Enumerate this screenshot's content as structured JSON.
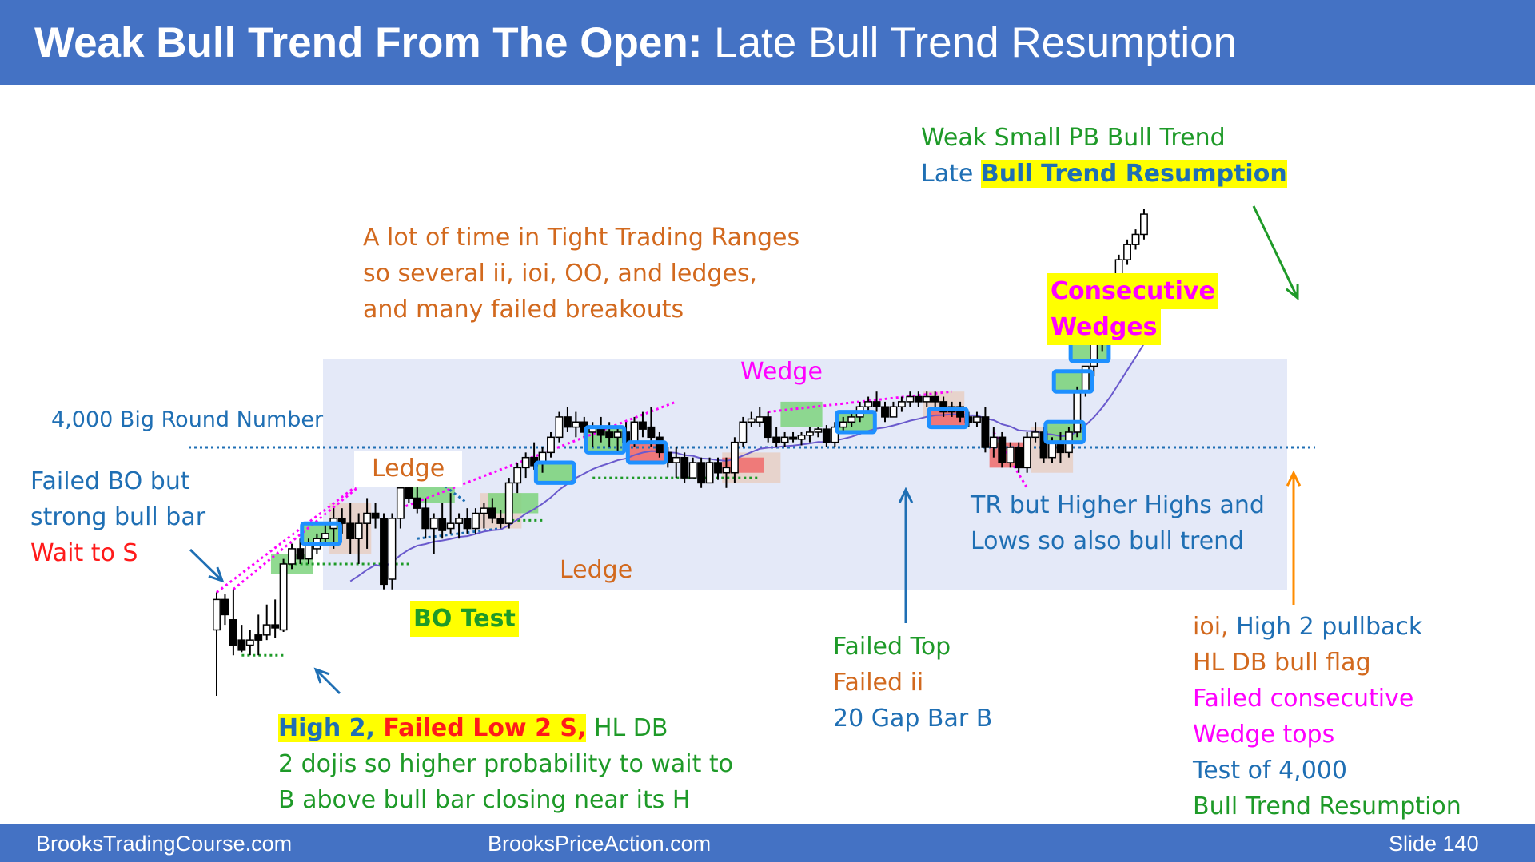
{
  "title": {
    "bold": "Weak Bull Trend From The Open:",
    "rest": "Late Bull Trend Resumption"
  },
  "footer": {
    "left": "BrooksTradingCourse.com",
    "center": "BrooksPriceAction.com",
    "right": "Slide  140"
  },
  "annotations": {
    "weak_small_pb": "Weak Small PB Bull Trend",
    "late": "Late",
    "bull_trend_resumption": "Bull Trend Resumption",
    "tight_tr_1": "A lot of time in Tight Trading Ranges",
    "tight_tr_2": "so several ii, ioi, OO, and ledges,",
    "tight_tr_3": "and many failed breakouts",
    "consecutive": "Consecutive",
    "wedges": "Wedges",
    "wedge": "Wedge",
    "big_round_number": "4,000 Big Round Number",
    "failed_bo_1": "Failed BO but",
    "failed_bo_2": "strong bull bar",
    "failed_bo_3": "Wait to S",
    "ledge_top": "Ledge",
    "ledge_bottom": "Ledge",
    "bo_test": "BO Test",
    "tr_hh_1": "TR but Higher Highs and",
    "tr_hh_2": "Lows so also bull trend",
    "failed_top_1": "Failed Top",
    "failed_top_2": "Failed ii",
    "failed_top_3": "20 Gap Bar B",
    "high2_a": "High 2,",
    "high2_b": "Failed Low 2 S,",
    "high2_c": "HL DB",
    "high2_2": "2 dojis so higher probability to wait to",
    "high2_3": "B above bull bar closing near its H",
    "ioi_1a": "ioi,",
    "ioi_1b": "High 2 pullback",
    "ioi_2": "HL DB bull flag",
    "ioi_3": "Failed consecutive",
    "ioi_4": "Wedge tops",
    "ioi_5": "Test of 4,000",
    "ioi_6": "Bull Trend Resumption"
  },
  "colors": {
    "header": "#4472c4",
    "bull": "#ffffff",
    "bear": "#000000",
    "ema": "#6a5acd",
    "trading_range": "#e4e9f8",
    "green_box": "#7ed47e",
    "red_box": "#f06a6a",
    "blue_box": "#1e90ff",
    "ledge_box": "#e8cfc4"
  },
  "chart_data": {
    "type": "candlestick",
    "title": "",
    "xlabel": "",
    "ylabel": "",
    "reference_line": {
      "value": 4000,
      "label": "4,000 Big Round Number"
    },
    "ylim": [
      3974,
      4026
    ],
    "bars": [
      {
        "o": 3982.0,
        "h": 3985.7,
        "l": 3975.5,
        "c": 3985.0
      },
      {
        "o": 3985.0,
        "h": 3985.5,
        "l": 3982.5,
        "c": 3983.5
      },
      {
        "o": 3983.0,
        "h": 3986.0,
        "l": 3979.5,
        "c": 3980.5
      },
      {
        "o": 3981.0,
        "h": 3982.5,
        "l": 3979.8,
        "c": 3980.0
      },
      {
        "o": 3980.5,
        "h": 3982.0,
        "l": 3979.5,
        "c": 3981.0
      },
      {
        "o": 3981.5,
        "h": 3983.5,
        "l": 3979.5,
        "c": 3981.0
      },
      {
        "o": 3981.5,
        "h": 3984.5,
        "l": 3981.0,
        "c": 3982.5
      },
      {
        "o": 3982.5,
        "h": 3985.0,
        "l": 3981.2,
        "c": 3982.2
      },
      {
        "o": 3982.0,
        "h": 3989.0,
        "l": 3981.8,
        "c": 3988.5
      },
      {
        "o": 3988.5,
        "h": 3990.5,
        "l": 3988.0,
        "c": 3990.0
      },
      {
        "o": 3990.0,
        "h": 3991.0,
        "l": 3988.5,
        "c": 3989.0
      },
      {
        "o": 3989.0,
        "h": 3991.0,
        "l": 3988.5,
        "c": 3990.5
      },
      {
        "o": 3990.0,
        "h": 3991.5,
        "l": 3989.5,
        "c": 3991.0
      },
      {
        "o": 3991.0,
        "h": 3992.5,
        "l": 3990.5,
        "c": 3991.5
      },
      {
        "o": 3992.0,
        "h": 3994.0,
        "l": 3990.0,
        "c": 3993.0
      },
      {
        "o": 3993.0,
        "h": 3994.0,
        "l": 3991.5,
        "c": 3992.5
      },
      {
        "o": 3992.5,
        "h": 3994.5,
        "l": 3989.5,
        "c": 3991.0
      },
      {
        "o": 3991.0,
        "h": 3993.5,
        "l": 3988.5,
        "c": 3992.5
      },
      {
        "o": 3992.5,
        "h": 3995.0,
        "l": 3990.0,
        "c": 3993.5
      },
      {
        "o": 3993.5,
        "h": 3994.5,
        "l": 3992.0,
        "c": 3993.0
      },
      {
        "o": 3993.0,
        "h": 3993.5,
        "l": 3986.0,
        "c": 3986.5
      },
      {
        "o": 3987.0,
        "h": 3993.5,
        "l": 3986.0,
        "c": 3993.0
      },
      {
        "o": 3993.0,
        "h": 3996.0,
        "l": 3992.0,
        "c": 3996.0
      },
      {
        "o": 3996.0,
        "h": 3999.5,
        "l": 3994.5,
        "c": 3995.0
      },
      {
        "o": 3995.0,
        "h": 3996.5,
        "l": 3993.5,
        "c": 3994.0
      },
      {
        "o": 3994.0,
        "h": 3995.0,
        "l": 3991.0,
        "c": 3992.0
      },
      {
        "o": 3992.0,
        "h": 3993.5,
        "l": 3989.5,
        "c": 3993.0
      },
      {
        "o": 3993.0,
        "h": 3994.5,
        "l": 3991.0,
        "c": 3991.8
      },
      {
        "o": 3992.0,
        "h": 3995.5,
        "l": 3991.5,
        "c": 3992.5
      },
      {
        "o": 3992.5,
        "h": 3993.5,
        "l": 3991.0,
        "c": 3993.0
      },
      {
        "o": 3993.0,
        "h": 3994.0,
        "l": 3991.5,
        "c": 3992.0
      },
      {
        "o": 3992.0,
        "h": 3994.0,
        "l": 3991.5,
        "c": 3993.5
      },
      {
        "o": 3993.5,
        "h": 3994.5,
        "l": 3992.0,
        "c": 3994.0
      },
      {
        "o": 3994.0,
        "h": 3995.0,
        "l": 3992.5,
        "c": 3993.0
      },
      {
        "o": 3993.0,
        "h": 3993.8,
        "l": 3992.0,
        "c": 3992.5
      },
      {
        "o": 3992.5,
        "h": 3997.0,
        "l": 3992.0,
        "c": 3996.5
      },
      {
        "o": 3996.5,
        "h": 3998.5,
        "l": 3995.5,
        "c": 3998.0
      },
      {
        "o": 3998.0,
        "h": 3999.5,
        "l": 3997.0,
        "c": 3999.0
      },
      {
        "o": 3999.0,
        "h": 4000.5,
        "l": 3997.8,
        "c": 3998.2
      },
      {
        "o": 3998.5,
        "h": 4000.0,
        "l": 3997.5,
        "c": 3999.5
      },
      {
        "o": 3999.5,
        "h": 4001.5,
        "l": 3999.0,
        "c": 4001.0
      },
      {
        "o": 4001.0,
        "h": 4003.5,
        "l": 4000.5,
        "c": 4003.0
      },
      {
        "o": 4003.0,
        "h": 4004.0,
        "l": 4001.5,
        "c": 4002.0
      },
      {
        "o": 4002.0,
        "h": 4003.5,
        "l": 4001.0,
        "c": 4002.5
      },
      {
        "o": 4002.5,
        "h": 4003.0,
        "l": 4001.0,
        "c": 4001.5
      },
      {
        "o": 4001.5,
        "h": 4002.5,
        "l": 4000.0,
        "c": 4002.0
      },
      {
        "o": 4002.0,
        "h": 4003.0,
        "l": 4000.5,
        "c": 4001.2
      },
      {
        "o": 4001.5,
        "h": 4002.5,
        "l": 4000.0,
        "c": 4001.0
      },
      {
        "o": 4001.0,
        "h": 4002.0,
        "l": 3999.5,
        "c": 4001.5
      },
      {
        "o": 4001.5,
        "h": 4002.5,
        "l": 4000.0,
        "c": 4000.5
      },
      {
        "o": 4000.5,
        "h": 4003.0,
        "l": 4000.0,
        "c": 4002.5
      },
      {
        "o": 4002.5,
        "h": 4003.5,
        "l": 4001.0,
        "c": 4001.8
      },
      {
        "o": 4002.0,
        "h": 4004.0,
        "l": 4000.0,
        "c": 4001.0
      },
      {
        "o": 4001.0,
        "h": 4001.5,
        "l": 3999.0,
        "c": 3999.5
      },
      {
        "o": 3999.5,
        "h": 4000.0,
        "l": 3998.0,
        "c": 3998.5
      },
      {
        "o": 3998.5,
        "h": 4000.0,
        "l": 3997.0,
        "c": 3999.0
      },
      {
        "o": 3999.0,
        "h": 3999.5,
        "l": 3996.5,
        "c": 3997.0
      },
      {
        "o": 3997.0,
        "h": 3999.0,
        "l": 3997.0,
        "c": 3998.5
      },
      {
        "o": 3998.5,
        "h": 3999.0,
        "l": 3996.0,
        "c": 3996.5
      },
      {
        "o": 3996.5,
        "h": 3999.0,
        "l": 3996.5,
        "c": 3998.5
      },
      {
        "o": 3998.5,
        "h": 3999.0,
        "l": 3996.8,
        "c": 3997.5
      },
      {
        "o": 3997.5,
        "h": 3999.0,
        "l": 3996.0,
        "c": 3998.0
      },
      {
        "o": 3997.5,
        "h": 4001.0,
        "l": 3996.5,
        "c": 4000.5
      },
      {
        "o": 4000.5,
        "h": 4003.0,
        "l": 4000.0,
        "c": 4002.5
      },
      {
        "o": 4002.5,
        "h": 4003.5,
        "l": 4002.0,
        "c": 4002.8
      },
      {
        "o": 4002.5,
        "h": 4004.0,
        "l": 4002.0,
        "c": 4003.0
      },
      {
        "o": 4003.0,
        "h": 4003.5,
        "l": 4000.5,
        "c": 4001.0
      },
      {
        "o": 4001.0,
        "h": 4002.0,
        "l": 4000.0,
        "c": 4000.5
      },
      {
        "o": 4000.5,
        "h": 4001.5,
        "l": 4000.0,
        "c": 4001.0
      },
      {
        "o": 4001.0,
        "h": 4001.5,
        "l": 4000.5,
        "c": 4000.8
      },
      {
        "o": 4000.8,
        "h": 4001.5,
        "l": 4000.2,
        "c": 4001.2
      },
      {
        "o": 4001.2,
        "h": 4002.0,
        "l": 4000.5,
        "c": 4001.5
      },
      {
        "o": 4001.5,
        "h": 4002.0,
        "l": 4001.0,
        "c": 4001.8
      },
      {
        "o": 4001.8,
        "h": 4002.2,
        "l": 4000.0,
        "c": 4000.5
      },
      {
        "o": 4000.5,
        "h": 4002.5,
        "l": 4000.0,
        "c": 4002.0
      },
      {
        "o": 4002.0,
        "h": 4003.0,
        "l": 4001.5,
        "c": 4002.5
      },
      {
        "o": 4002.5,
        "h": 4003.5,
        "l": 4002.0,
        "c": 4003.0
      },
      {
        "o": 4003.0,
        "h": 4004.5,
        "l": 4002.5,
        "c": 4004.0
      },
      {
        "o": 4004.0,
        "h": 4005.0,
        "l": 4003.5,
        "c": 4004.5
      },
      {
        "o": 4004.5,
        "h": 4005.5,
        "l": 4003.5,
        "c": 4004.0
      },
      {
        "o": 4004.0,
        "h": 4004.5,
        "l": 4002.5,
        "c": 4003.0
      },
      {
        "o": 4003.0,
        "h": 4004.5,
        "l": 4003.0,
        "c": 4004.0
      },
      {
        "o": 4004.0,
        "h": 4005.0,
        "l": 4003.5,
        "c": 4004.5
      },
      {
        "o": 4004.5,
        "h": 4005.5,
        "l": 4004.0,
        "c": 4005.0
      },
      {
        "o": 4005.0,
        "h": 4005.5,
        "l": 4004.0,
        "c": 4004.5
      },
      {
        "o": 4004.5,
        "h": 4005.5,
        "l": 4004.0,
        "c": 4005.0
      },
      {
        "o": 4005.0,
        "h": 4005.5,
        "l": 4004.0,
        "c": 4004.5
      },
      {
        "o": 4004.5,
        "h": 4005.0,
        "l": 4003.0,
        "c": 4003.5
      },
      {
        "o": 4003.5,
        "h": 4004.5,
        "l": 4003.0,
        "c": 4004.0
      },
      {
        "o": 4004.0,
        "h": 4004.5,
        "l": 4002.5,
        "c": 4003.0
      },
      {
        "o": 4003.0,
        "h": 4003.5,
        "l": 4002.0,
        "c": 4002.5
      },
      {
        "o": 4002.5,
        "h": 4003.5,
        "l": 4002.0,
        "c": 4003.0
      },
      {
        "o": 4003.0,
        "h": 4004.0,
        "l": 3999.5,
        "c": 4000.0
      },
      {
        "o": 4000.0,
        "h": 4002.0,
        "l": 3999.0,
        "c": 4001.0
      },
      {
        "o": 4001.0,
        "h": 4001.5,
        "l": 3998.0,
        "c": 3998.5
      },
      {
        "o": 3998.5,
        "h": 4000.5,
        "l": 3998.0,
        "c": 4000.0
      },
      {
        "o": 4000.0,
        "h": 4000.5,
        "l": 3997.5,
        "c": 3998.0
      },
      {
        "o": 3998.0,
        "h": 4001.5,
        "l": 3997.5,
        "c": 4001.0
      },
      {
        "o": 4001.0,
        "h": 4002.5,
        "l": 4000.5,
        "c": 4001.5
      },
      {
        "o": 4001.5,
        "h": 4002.0,
        "l": 3998.5,
        "c": 3999.0
      },
      {
        "o": 3999.0,
        "h": 4001.0,
        "l": 3998.5,
        "c": 4000.5
      },
      {
        "o": 4000.5,
        "h": 4001.5,
        "l": 3998.5,
        "c": 3999.5
      },
      {
        "o": 3999.5,
        "h": 4002.0,
        "l": 3999.0,
        "c": 4001.5
      },
      {
        "o": 4001.5,
        "h": 4006.0,
        "l": 4001.0,
        "c": 4005.5
      },
      {
        "o": 4005.5,
        "h": 4008.0,
        "l": 4005.0,
        "c": 4008.0
      },
      {
        "o": 4008.0,
        "h": 4011.0,
        "l": 4007.0,
        "c": 4010.5
      },
      {
        "o": 4010.5,
        "h": 4013.5,
        "l": 4009.5,
        "c": 4013.0
      },
      {
        "o": 4013.0,
        "h": 4016.0,
        "l": 4012.0,
        "c": 4015.5
      },
      {
        "o": 4015.5,
        "h": 4019.0,
        "l": 4015.0,
        "c": 4018.5
      },
      {
        "o": 4018.5,
        "h": 4020.5,
        "l": 4018.0,
        "c": 4020.0
      },
      {
        "o": 4020.0,
        "h": 4021.5,
        "l": 4019.5,
        "c": 4021.0
      },
      {
        "o": 4021.0,
        "h": 4023.5,
        "l": 4020.5,
        "c": 4023.0
      }
    ]
  }
}
